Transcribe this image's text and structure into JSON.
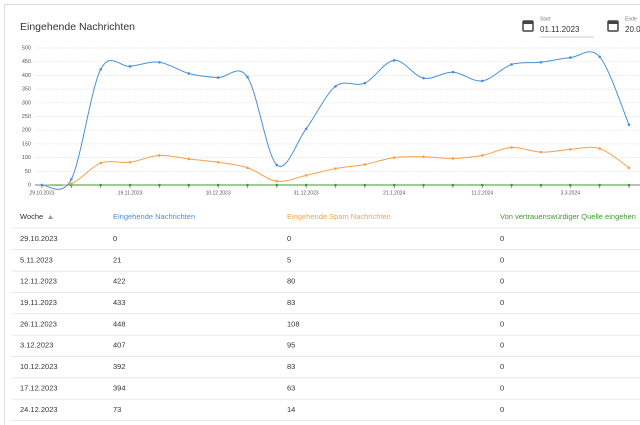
{
  "header": {
    "title": "Eingehende Nachrichten",
    "start_label": "Start",
    "start_value": "01.11.2023",
    "end_label": "Ende",
    "end_value": "20.0"
  },
  "chart_data": {
    "type": "line",
    "categories": [
      "29.10.2023",
      null,
      null,
      "19.11.2023",
      null,
      null,
      "10.12.2023",
      null,
      null,
      "31.12.2023",
      null,
      null,
      "21.1.2024",
      null,
      null,
      "11.2.2024",
      null,
      null,
      "3.3.2024",
      null,
      null
    ],
    "series": [
      {
        "name": "Eingehende Nachrichten",
        "color": "#4a90d9",
        "values": [
          0,
          21,
          422,
          433,
          448,
          407,
          392,
          394,
          73,
          205,
          360,
          372,
          455,
          390,
          412,
          380,
          440,
          448,
          465,
          468,
          220
        ]
      },
      {
        "name": "Eingehende Spam Nachrichten",
        "color": "#f5a04a",
        "values": [
          0,
          5,
          80,
          83,
          108,
          95,
          83,
          63,
          14,
          35,
          60,
          75,
          100,
          103,
          97,
          108,
          137,
          120,
          130,
          133,
          63
        ]
      },
      {
        "name": "Von vertrauenswürdiger Quelle eingehen",
        "color": "#3c9a2e",
        "values": [
          0,
          0,
          0,
          0,
          0,
          0,
          0,
          0,
          0,
          0,
          0,
          0,
          0,
          0,
          0,
          0,
          0,
          0,
          0,
          0,
          0
        ]
      }
    ],
    "ylim": [
      0,
      500
    ],
    "yticks": [
      0,
      50,
      100,
      150,
      200,
      250,
      300,
      350,
      400,
      450,
      500
    ],
    "grid": true
  },
  "table": {
    "first_column": "Woche",
    "rows": [
      [
        "29.10.2023",
        "0",
        "0",
        "0"
      ],
      [
        "5.11.2023",
        "21",
        "5",
        "0"
      ],
      [
        "12.11.2023",
        "422",
        "80",
        "0"
      ],
      [
        "19.11.2023",
        "433",
        "83",
        "0"
      ],
      [
        "26.11.2023",
        "448",
        "108",
        "0"
      ],
      [
        "3.12.2023",
        "407",
        "95",
        "0"
      ],
      [
        "10.12.2023",
        "392",
        "83",
        "0"
      ],
      [
        "17.12.2023",
        "394",
        "63",
        "0"
      ],
      [
        "24.12.2023",
        "73",
        "14",
        "0"
      ]
    ]
  }
}
